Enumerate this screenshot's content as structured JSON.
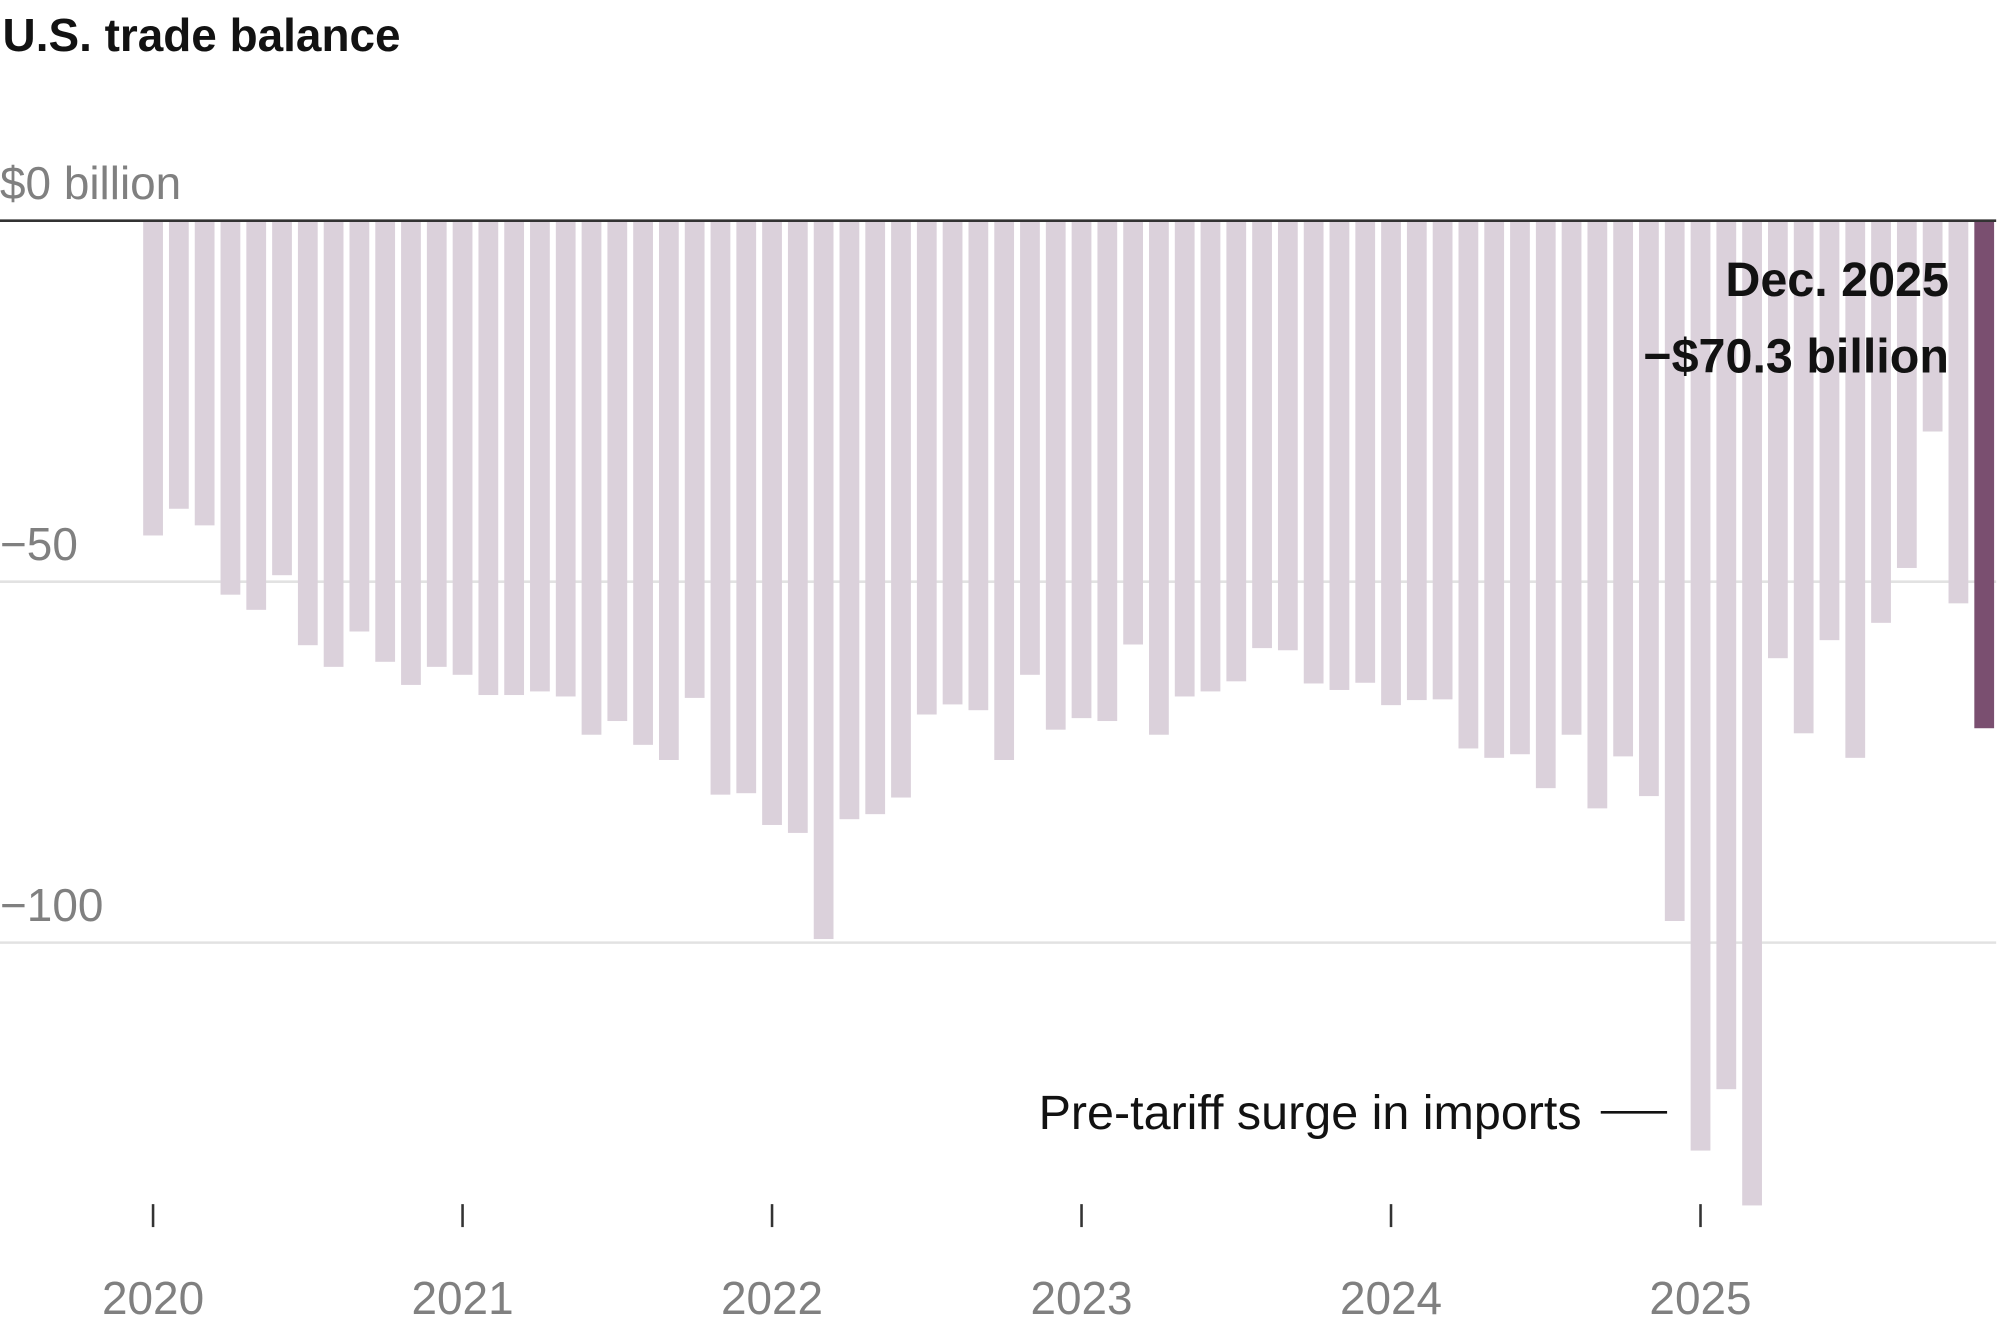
{
  "chart_data": {
    "type": "bar",
    "title": "U.S. trade balance",
    "unit_label": "$0 billion",
    "y_tick_labels": [
      "$0 billion",
      "−50",
      "−100"
    ],
    "y_ticks": [
      0,
      -50,
      -100
    ],
    "ylim": [
      -140,
      0
    ],
    "grid": true,
    "x_tick_labels": [
      "2020",
      "2021",
      "2022",
      "2023",
      "2024",
      "2025"
    ],
    "frequency": "monthly",
    "start": "2020-01",
    "end": "2025-12",
    "values": [
      -43.6,
      -39.9,
      -42.2,
      -51.8,
      -53.9,
      -49.1,
      -58.8,
      -61.8,
      -56.9,
      -61.1,
      -64.3,
      -61.8,
      -62.9,
      -65.7,
      -65.7,
      -65.2,
      -65.9,
      -71.2,
      -69.3,
      -72.6,
      -74.7,
      -66.1,
      -79.5,
      -79.3,
      -83.7,
      -84.8,
      -99.5,
      -82.9,
      -82.2,
      -79.9,
      -68.4,
      -67.0,
      -67.8,
      -74.7,
      -62.9,
      -70.5,
      -68.9,
      -69.3,
      -58.7,
      -71.2,
      -65.9,
      -65.2,
      -63.8,
      -59.2,
      -59.5,
      -64.1,
      -65.0,
      -64.0,
      -67.1,
      -66.4,
      -66.3,
      -73.1,
      -74.4,
      -73.9,
      -78.6,
      -71.2,
      -81.4,
      -74.2,
      -79.7,
      -97.0,
      -128.8,
      -120.3,
      -136.4,
      -60.6,
      -71.0,
      -58.1,
      -74.4,
      -55.7,
      -48.1,
      -29.2,
      -53.0,
      -70.3
    ],
    "colors": {
      "bar": "#dbd1db",
      "highlight": "#7a4f70",
      "baseline": "#333333",
      "grid": "#e2e2e2"
    },
    "annotations": {
      "highlight_date": "Dec. 2025",
      "highlight_value": "−$70.3 billion",
      "surge": "Pre-tariff surge in imports"
    }
  }
}
